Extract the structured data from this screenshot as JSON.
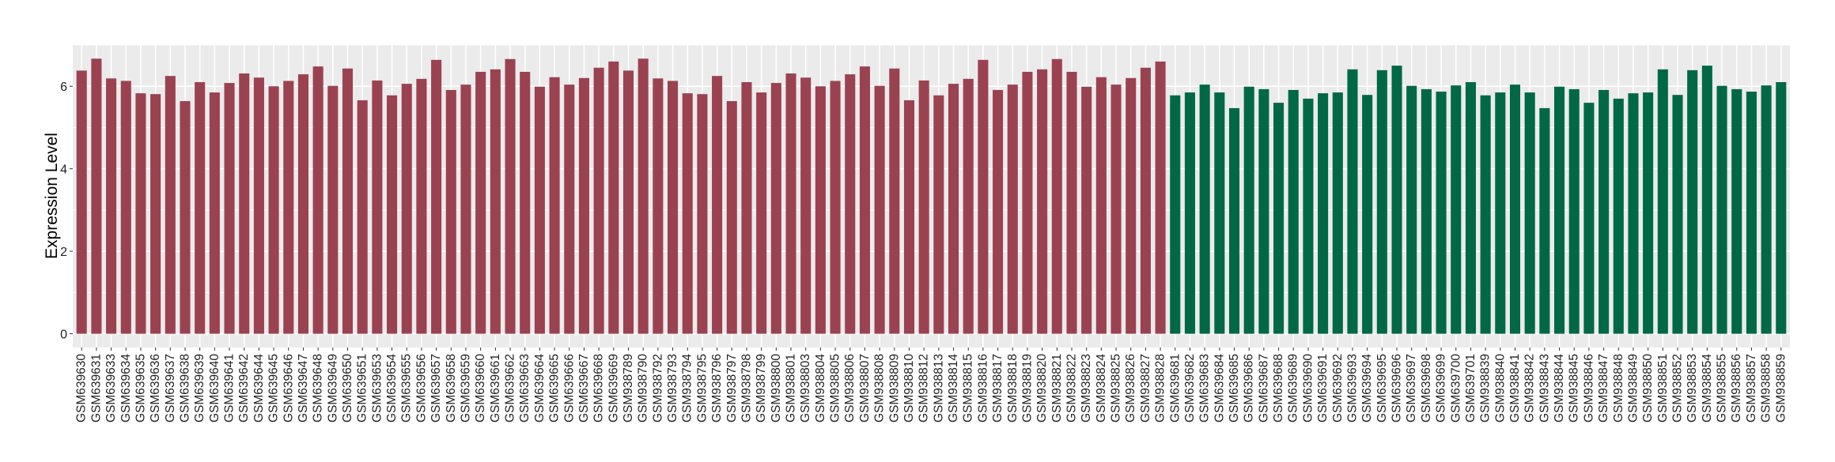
{
  "chart_data": {
    "type": "bar",
    "title": "",
    "xlabel": "",
    "ylabel": "Expression Level",
    "ylim": [
      0,
      7
    ],
    "yticks": [
      0,
      2,
      4,
      6
    ],
    "grid": true,
    "legend": "none",
    "palette": {
      "red": "#9B4251",
      "green": "#006845",
      "panel": "#EBEBEB",
      "grid": "#FFFFFF"
    },
    "categories": [
      "GSM639630",
      "GSM639631",
      "GSM639633",
      "GSM639634",
      "GSM639635",
      "GSM639636",
      "GSM639637",
      "GSM639638",
      "GSM639639",
      "GSM639640",
      "GSM639641",
      "GSM639642",
      "GSM639644",
      "GSM639645",
      "GSM639646",
      "GSM639647",
      "GSM639648",
      "GSM639649",
      "GSM639650",
      "GSM639651",
      "GSM639653",
      "GSM639654",
      "GSM639655",
      "GSM639656",
      "GSM639657",
      "GSM639658",
      "GSM639659",
      "GSM639660",
      "GSM639661",
      "GSM639662",
      "GSM639663",
      "GSM639664",
      "GSM639665",
      "GSM639666",
      "GSM639667",
      "GSM639668",
      "GSM639669",
      "GSM938789",
      "GSM938790",
      "GSM938792",
      "GSM938793",
      "GSM938794",
      "GSM938795",
      "GSM938796",
      "GSM938797",
      "GSM938798",
      "GSM938799",
      "GSM938800",
      "GSM938801",
      "GSM938803",
      "GSM938804",
      "GSM938805",
      "GSM938806",
      "GSM938807",
      "GSM938808",
      "GSM938809",
      "GSM938810",
      "GSM938812",
      "GSM938813",
      "GSM938814",
      "GSM938815",
      "GSM938816",
      "GSM938817",
      "GSM938818",
      "GSM938819",
      "GSM938820",
      "GSM938821",
      "GSM938822",
      "GSM938823",
      "GSM938824",
      "GSM938825",
      "GSM938826",
      "GSM938827",
      "GSM938828",
      "GSM639681",
      "GSM639682",
      "GSM639683",
      "GSM639684",
      "GSM639685",
      "GSM639686",
      "GSM639687",
      "GSM639688",
      "GSM639689",
      "GSM639690",
      "GSM639691",
      "GSM639692",
      "GSM639693",
      "GSM639694",
      "GSM639695",
      "GSM639696",
      "GSM639697",
      "GSM639698",
      "GSM639699",
      "GSM639700",
      "GSM639701",
      "GSM938839",
      "GSM938840",
      "GSM938841",
      "GSM938842",
      "GSM938843",
      "GSM938844",
      "GSM938845",
      "GSM938846",
      "GSM938847",
      "GSM938848",
      "GSM938849",
      "GSM938850",
      "GSM938851",
      "GSM938852",
      "GSM938853",
      "GSM938854",
      "GSM938855",
      "GSM938856",
      "GSM938857",
      "GSM938858",
      "GSM938859"
    ],
    "values": [
      6.38,
      6.67,
      6.19,
      6.13,
      5.83,
      5.81,
      6.25,
      5.64,
      6.1,
      5.85,
      6.08,
      6.31,
      6.21,
      6.0,
      6.13,
      6.29,
      6.48,
      6.01,
      6.43,
      5.66,
      6.14,
      5.78,
      6.06,
      6.18,
      6.64,
      5.91,
      6.04,
      6.35,
      6.41,
      6.66,
      6.35,
      5.99,
      6.22,
      6.04,
      6.2,
      6.45,
      6.6,
      6.38,
      6.67,
      6.19,
      6.13,
      5.83,
      5.81,
      6.25,
      5.64,
      6.1,
      5.85,
      6.08,
      6.31,
      6.21,
      6.0,
      6.13,
      6.29,
      6.48,
      6.01,
      6.43,
      5.66,
      6.14,
      5.78,
      6.06,
      6.18,
      6.64,
      5.91,
      6.04,
      6.35,
      6.41,
      6.66,
      6.35,
      5.99,
      6.22,
      6.04,
      6.2,
      6.45,
      6.6,
      5.78,
      5.85,
      6.04,
      5.85,
      5.47,
      5.99,
      5.93,
      5.6,
      5.91,
      5.7,
      5.83,
      5.85,
      6.41,
      5.79,
      6.39,
      6.5,
      6.01,
      5.93,
      5.87,
      6.02,
      6.1,
      5.78,
      5.85,
      6.04,
      5.85,
      5.47,
      5.99,
      5.93,
      5.6,
      5.91,
      5.7,
      5.83,
      5.85,
      6.41,
      5.79,
      6.39,
      6.5,
      6.01,
      5.93,
      5.87,
      6.02,
      6.1
    ],
    "bar_color_counts": {
      "red": 74,
      "green": 42
    }
  }
}
